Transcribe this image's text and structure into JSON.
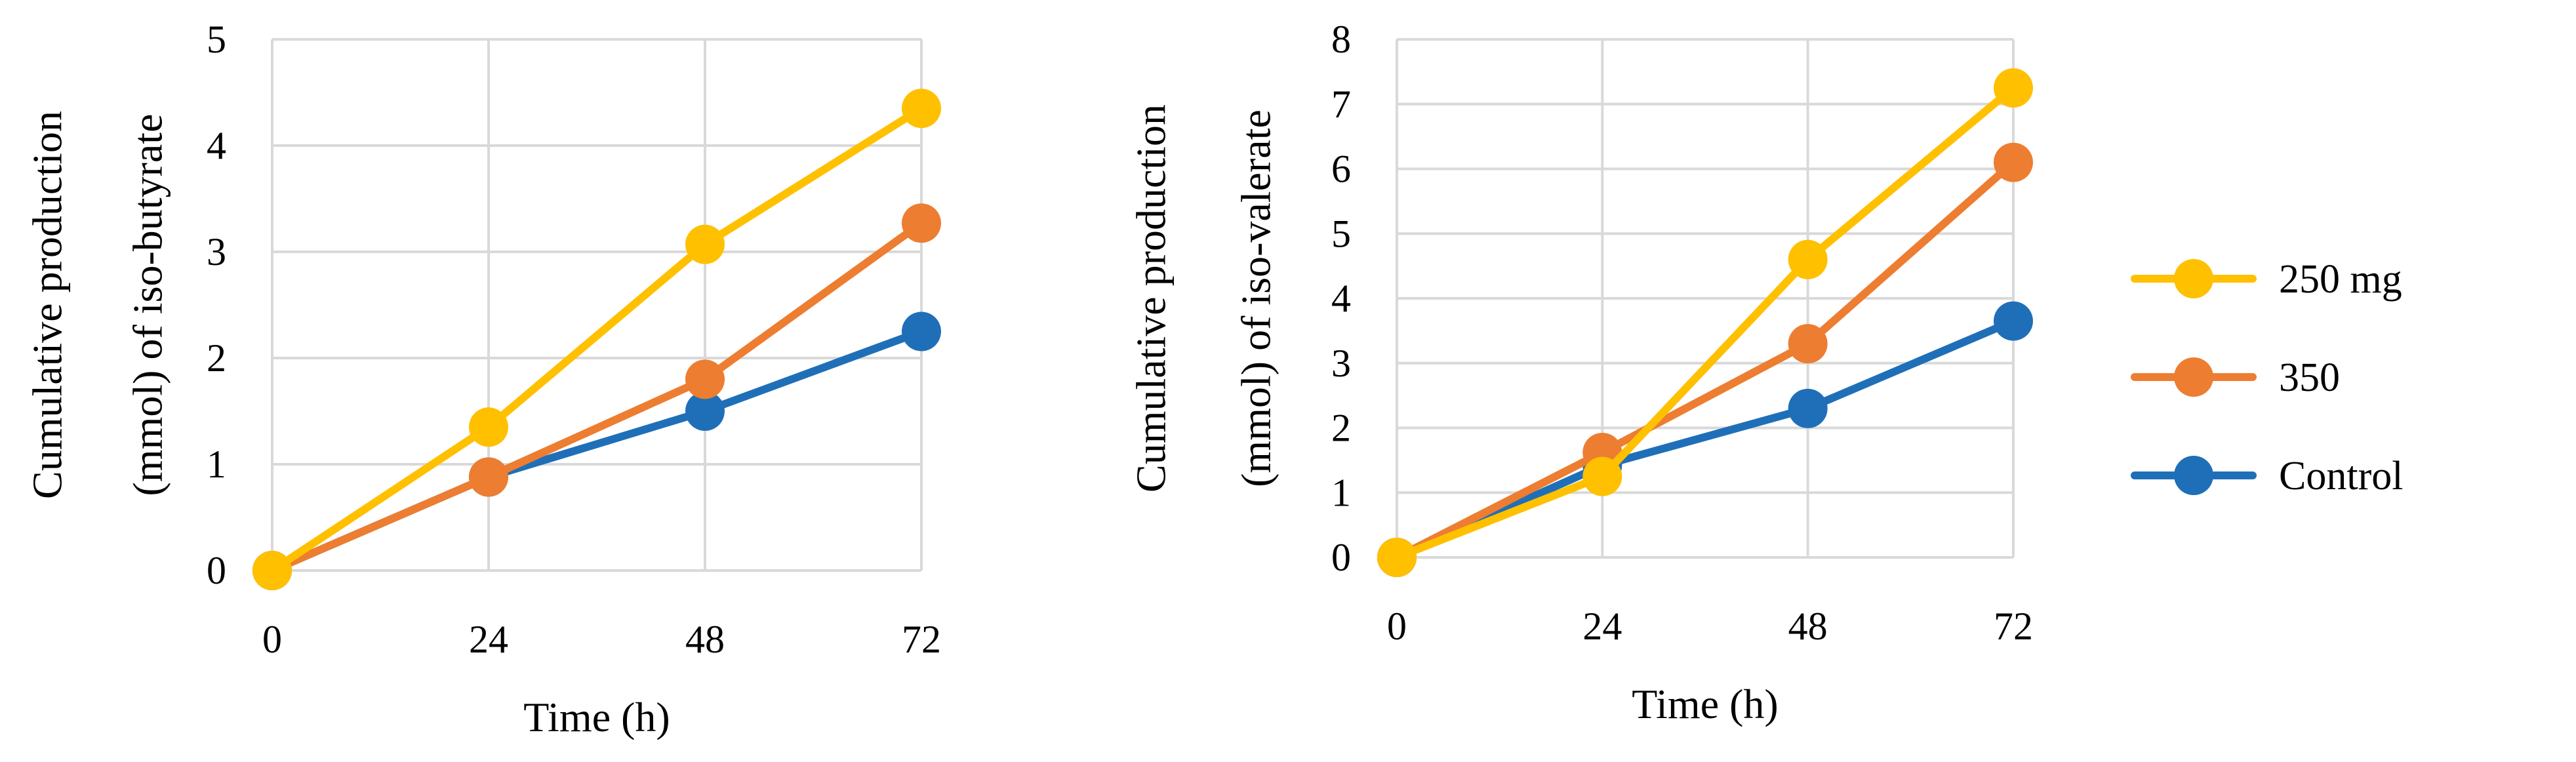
{
  "chart_data": [
    {
      "type": "line",
      "x": [
        "0",
        "24",
        "48",
        "72"
      ],
      "xlabel": "Time (h)",
      "ylabel_lines": [
        "Cumulative production",
        "(mmol) of iso-butyrate"
      ],
      "ylim": [
        0,
        5
      ],
      "yticks": [
        "0",
        "1",
        "2",
        "3",
        "4",
        "5"
      ],
      "grid": true,
      "series": [
        {
          "name": "Control",
          "color": "#1f6fb8",
          "values": [
            0,
            0.88,
            1.5,
            2.25
          ]
        },
        {
          "name": "350",
          "color": "#ed7d31",
          "values": [
            0,
            0.88,
            1.8,
            3.27
          ]
        },
        {
          "name": "250 mg",
          "color": "#ffc000",
          "values": [
            0,
            1.35,
            3.07,
            4.35
          ]
        }
      ]
    },
    {
      "type": "line",
      "x": [
        "0",
        "24",
        "48",
        "72"
      ],
      "xlabel": "Time (h)",
      "ylabel_lines": [
        "Cumulative production",
        "(mmol) of iso-valerate"
      ],
      "ylim": [
        0,
        8
      ],
      "yticks": [
        "0",
        "1",
        "2",
        "3",
        "4",
        "5",
        "6",
        "7",
        "8"
      ],
      "grid": true,
      "series": [
        {
          "name": "Control",
          "color": "#1f6fb8",
          "values": [
            0,
            1.42,
            2.3,
            3.65
          ]
        },
        {
          "name": "350",
          "color": "#ed7d31",
          "values": [
            0,
            1.62,
            3.3,
            6.1
          ]
        },
        {
          "name": "250 mg",
          "color": "#ffc000",
          "values": [
            0,
            1.25,
            4.6,
            7.25
          ]
        }
      ]
    }
  ],
  "legend": {
    "placement": "right",
    "items": [
      {
        "label": "250 mg",
        "color": "#ffc000"
      },
      {
        "label": "350",
        "color": "#ed7d31"
      },
      {
        "label": "Control",
        "color": "#1f6fb8"
      }
    ]
  }
}
